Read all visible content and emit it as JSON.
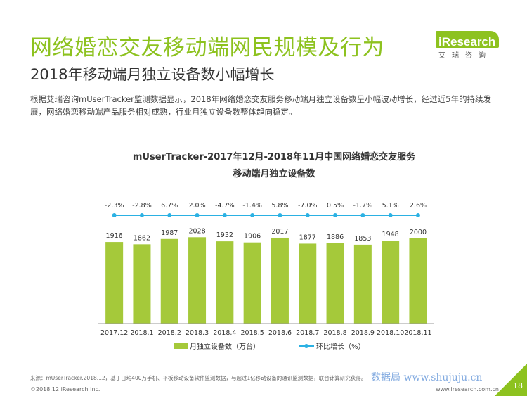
{
  "header": {
    "title": "网络婚恋交友移动端网民规模及行为",
    "subtitle": "2018年移动端月独立设备数小幅增长"
  },
  "logo": {
    "text": "iResearch",
    "cn": "艾瑞咨询"
  },
  "description": "根据艾瑞咨询mUserTracker监测数据显示，2018年网络婚恋交友服务移动端月独立设备数呈小幅波动增长，经过近5年的持续发展，网络婚恋移动端产品服务相对成熟，行业月独立设备数整体趋向稳定。",
  "chart_data": {
    "type": "bar",
    "title_line1": "mUserTracker-2017年12月-2018年11月中国网络婚恋交友服务",
    "title_line2": "移动端月独立设备数",
    "categories": [
      "2017.12",
      "2018.1",
      "2018.2",
      "2018.3",
      "2018.4",
      "2018.5",
      "2018.6",
      "2018.7",
      "2018.8",
      "2018.9",
      "2018.10",
      "2018.11"
    ],
    "series": [
      {
        "name": "月独立设备数（万台）",
        "type": "bar",
        "values": [
          1916,
          1862,
          1987,
          2028,
          1932,
          1906,
          2017,
          1877,
          1886,
          1853,
          1948,
          2000
        ]
      },
      {
        "name": "环比增长（%）",
        "type": "line",
        "values": [
          -2.3,
          -2.8,
          6.7,
          2.0,
          -4.7,
          -1.4,
          5.8,
          -7.0,
          0.5,
          -1.7,
          5.1,
          2.6
        ]
      }
    ],
    "growth_labels": [
      "-2.3%",
      "-2.8%",
      "6.7%",
      "2.0%",
      "-4.7%",
      "-1.4%",
      "5.8%",
      "-7.0%",
      "0.5%",
      "-1.7%",
      "5.1%",
      "2.6%"
    ],
    "bar_color": "#a5c93a",
    "line_color": "#2bb1e3",
    "legend_position": "bottom",
    "grid": false
  },
  "footer": {
    "source": "来源：mUserTracker.2018.12，基于日均400万手机、平板移动设备软件监测数据，与超过1亿移动设备的通讯监测数据，联合计算研究获得。",
    "copyright": "©2018.12 iResearch Inc.",
    "url": "www.iresearch.com.cn",
    "page": "18",
    "watermark": "数据局  www.shujuju.cn"
  }
}
